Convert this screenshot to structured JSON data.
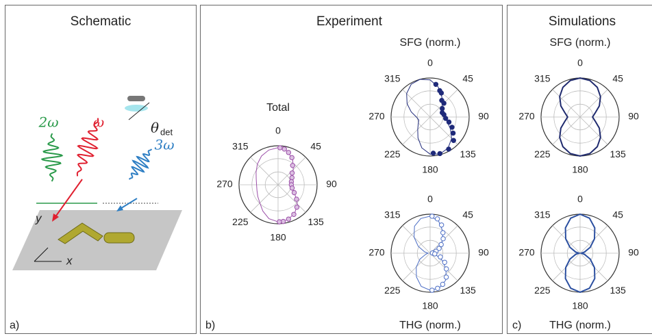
{
  "panels": [
    {
      "title": "Schematic",
      "label": "a)"
    },
    {
      "title": "Experiment",
      "label": "b)"
    },
    {
      "title": "Simulations",
      "label": "c)"
    }
  ],
  "schematic": {
    "two_omega": "2ω",
    "omega": "ω",
    "three_omega": "3ω",
    "theta": "θ",
    "theta_sub": "det",
    "x": "x",
    "y": "y"
  },
  "chart_data": [
    {
      "type": "polar",
      "title": "Total",
      "color": "#9b4fa8",
      "marker": "half",
      "thetaticks": [
        0,
        45,
        90,
        135,
        180,
        225,
        270,
        315
      ],
      "rlim": [
        0,
        1
      ],
      "rgrid": [
        0.33,
        0.67,
        1
      ],
      "curve": {
        "theta": [
          0,
          15,
          30,
          45,
          60,
          75,
          90,
          105,
          120,
          135,
          150,
          165,
          180,
          195,
          210,
          225,
          240,
          255,
          270,
          285,
          300,
          315,
          330,
          345
        ],
        "r": [
          0.95,
          0.9,
          0.75,
          0.55,
          0.42,
          0.35,
          0.33,
          0.38,
          0.5,
          0.7,
          0.85,
          0.93,
          0.95,
          0.9,
          0.78,
          0.66,
          0.6,
          0.56,
          0.55,
          0.58,
          0.65,
          0.75,
          0.85,
          0.92
        ]
      },
      "points": {
        "theta": [
          3,
          10,
          18,
          27,
          37,
          50,
          63,
          77,
          90,
          103,
          116,
          128,
          140,
          152,
          163,
          172,
          178
        ],
        "r": [
          0.95,
          0.93,
          0.87,
          0.78,
          0.62,
          0.47,
          0.4,
          0.35,
          0.34,
          0.37,
          0.46,
          0.6,
          0.75,
          0.86,
          0.92,
          0.95,
          0.95
        ]
      }
    },
    {
      "type": "polar",
      "title": "SFG (norm.)",
      "color": "#1f2a7a",
      "marker": "filled",
      "thetaticks": [
        0,
        45,
        90,
        135,
        180,
        225,
        270,
        315
      ],
      "rlim": [
        0,
        1
      ],
      "rgrid": [
        0.33,
        0.67,
        1
      ],
      "curve": {
        "theta": [
          0,
          15,
          30,
          45,
          60,
          75,
          90,
          105,
          120,
          135,
          150,
          165,
          180,
          195,
          210,
          225,
          240,
          255,
          270,
          285,
          300,
          315,
          330,
          345
        ],
        "r": [
          0.95,
          0.8,
          0.6,
          0.45,
          0.35,
          0.3,
          0.35,
          0.45,
          0.6,
          0.78,
          0.92,
          0.98,
          0.95,
          0.82,
          0.62,
          0.45,
          0.35,
          0.3,
          0.35,
          0.5,
          0.68,
          0.85,
          0.97,
          1
        ]
      },
      "points": {
        "theta": [
          10,
          20,
          25,
          35,
          45,
          55,
          70,
          80,
          95,
          105,
          115,
          125,
          135,
          150,
          165,
          175
        ],
        "r": [
          0.85,
          0.72,
          0.68,
          0.52,
          0.5,
          0.38,
          0.33,
          0.36,
          0.4,
          0.5,
          0.62,
          0.72,
          0.85,
          0.95,
          0.97,
          0.93
        ]
      }
    },
    {
      "type": "polar",
      "footer": "THG (norm.)",
      "color": "#4a6cc4",
      "marker": "hollow",
      "thetaticks": [
        0,
        45,
        90,
        135,
        180,
        225,
        270,
        315
      ],
      "rlim": [
        0,
        1
      ],
      "rgrid": [
        0.33,
        0.67,
        1
      ],
      "curve": {
        "theta": [
          0,
          15,
          30,
          45,
          60,
          75,
          90,
          105,
          120,
          135,
          150,
          165,
          180,
          195,
          210,
          225,
          240,
          255,
          270,
          285,
          300,
          315,
          330,
          345
        ],
        "r": [
          0.95,
          0.85,
          0.65,
          0.45,
          0.28,
          0.12,
          0.03,
          0.15,
          0.35,
          0.58,
          0.8,
          0.92,
          0.95,
          0.88,
          0.7,
          0.5,
          0.3,
          0.12,
          0.05,
          0.15,
          0.35,
          0.58,
          0.8,
          0.92
        ]
      },
      "points": {
        "theta": [
          3,
          12,
          22,
          32,
          42,
          52,
          62,
          72,
          85,
          98,
          110,
          122,
          134,
          146,
          158,
          168,
          177
        ],
        "r": [
          0.95,
          0.9,
          0.78,
          0.62,
          0.5,
          0.36,
          0.26,
          0.16,
          0.06,
          0.12,
          0.28,
          0.44,
          0.58,
          0.74,
          0.86,
          0.92,
          0.95
        ]
      }
    },
    {
      "type": "polar",
      "title": "SFG (norm.)",
      "color": "#1f2a6e",
      "marker": "none",
      "thetaticks": [
        0,
        45,
        90,
        135,
        180,
        225,
        270,
        315
      ],
      "rlim": [
        0,
        1
      ],
      "rgrid": [
        0.33,
        0.67,
        1
      ],
      "curve": {
        "theta": [
          0,
          15,
          30,
          45,
          60,
          75,
          90,
          105,
          120,
          135,
          150,
          165,
          180,
          195,
          210,
          225,
          240,
          255,
          270,
          285,
          300,
          315,
          330,
          345
        ],
        "r": [
          1,
          0.97,
          0.88,
          0.74,
          0.57,
          0.4,
          0.32,
          0.4,
          0.57,
          0.74,
          0.88,
          0.97,
          1,
          0.97,
          0.88,
          0.74,
          0.57,
          0.4,
          0.32,
          0.4,
          0.57,
          0.74,
          0.88,
          0.97
        ]
      }
    },
    {
      "type": "polar",
      "footer": "THG (norm.)",
      "color": "#2b4fa0",
      "marker": "none",
      "thetaticks": [
        0,
        45,
        90,
        135,
        180,
        225,
        270,
        315
      ],
      "rlim": [
        0,
        1
      ],
      "rgrid": [
        0.33,
        0.67,
        1
      ],
      "curve": {
        "theta": [
          0,
          15,
          30,
          45,
          60,
          75,
          90,
          105,
          120,
          135,
          150,
          165,
          180,
          195,
          210,
          225,
          240,
          255,
          270,
          285,
          300,
          315,
          330,
          345
        ],
        "r": [
          1,
          0.93,
          0.75,
          0.52,
          0.3,
          0.12,
          0.03,
          0.12,
          0.3,
          0.52,
          0.75,
          0.93,
          1,
          0.93,
          0.75,
          0.52,
          0.3,
          0.12,
          0.03,
          0.12,
          0.3,
          0.52,
          0.75,
          0.93
        ]
      }
    }
  ]
}
